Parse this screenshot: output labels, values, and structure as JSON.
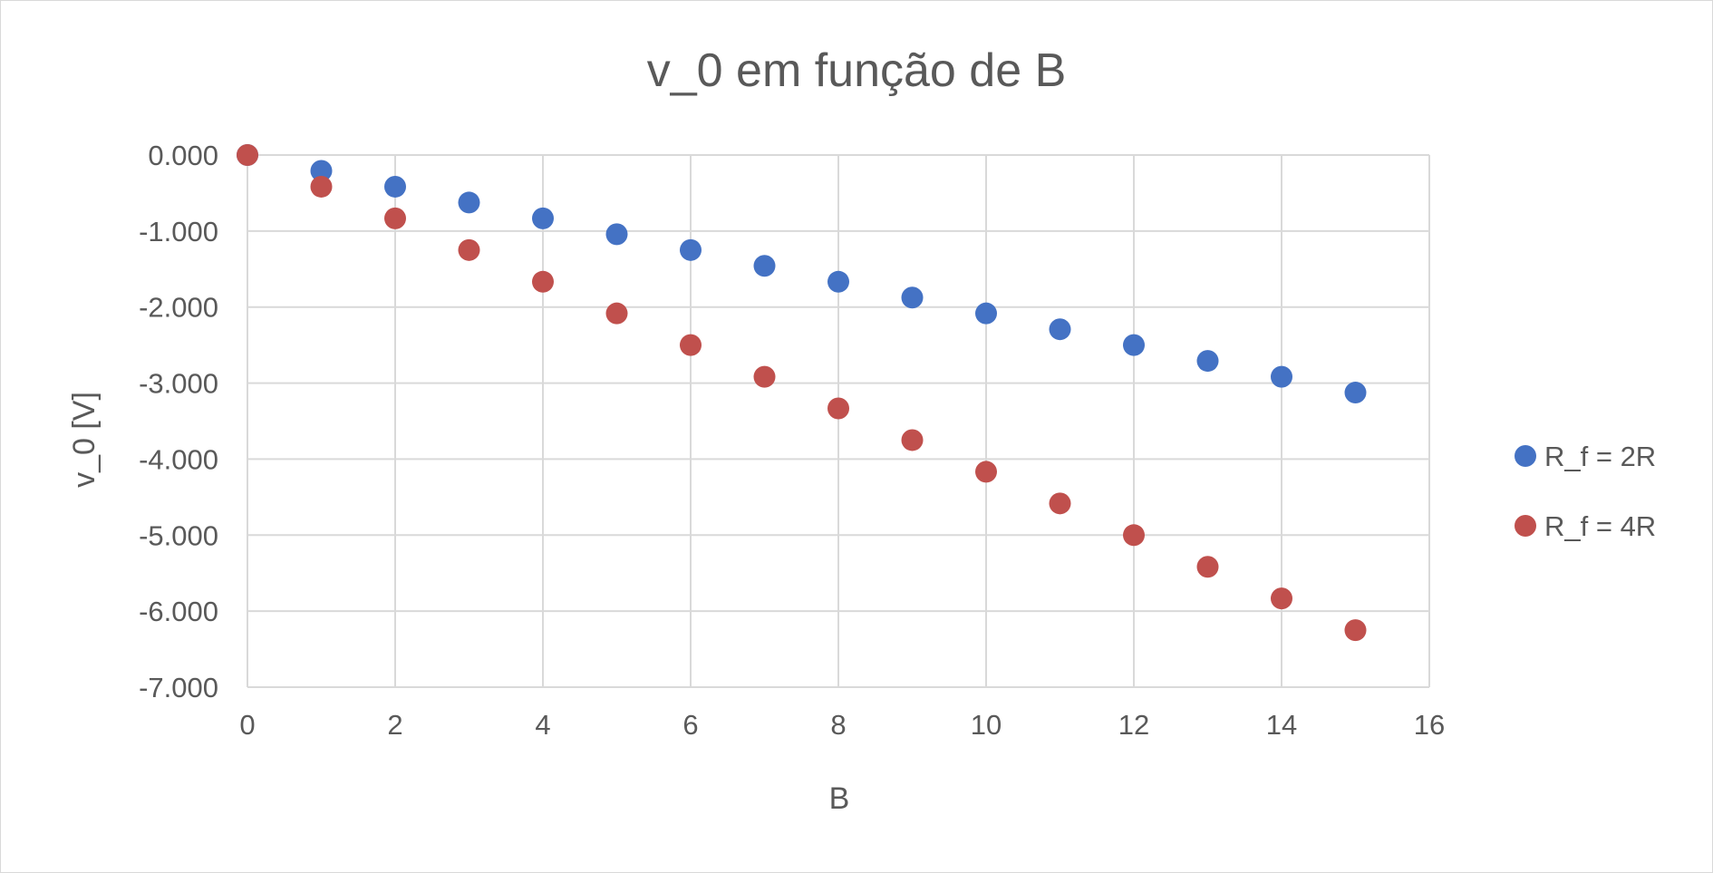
{
  "chart_data": {
    "type": "scatter",
    "title": "v_0 em função de B",
    "xlabel": "B",
    "ylabel": "v_0 [V]",
    "xlim": [
      0,
      16
    ],
    "ylim": [
      -7,
      0
    ],
    "x_ticks": [
      "0",
      "2",
      "4",
      "6",
      "8",
      "10",
      "12",
      "14",
      "16"
    ],
    "y_ticks": [
      "0.000",
      "-1.000",
      "-2.000",
      "-3.000",
      "-4.000",
      "-5.000",
      "-6.000",
      "-7.000"
    ],
    "grid": true,
    "legend_position": "right",
    "series": [
      {
        "name": "R_f = 2R",
        "color": "#4472C4",
        "x": [
          0,
          1,
          2,
          3,
          4,
          5,
          6,
          7,
          8,
          9,
          10,
          11,
          12,
          13,
          14,
          15
        ],
        "y": [
          0,
          -0.208,
          -0.417,
          -0.625,
          -0.833,
          -1.042,
          -1.25,
          -1.458,
          -1.667,
          -1.875,
          -2.083,
          -2.292,
          -2.5,
          -2.708,
          -2.917,
          -3.125
        ]
      },
      {
        "name": "R_f = 4R",
        "color": "#C0504D",
        "x": [
          0,
          1,
          2,
          3,
          4,
          5,
          6,
          7,
          8,
          9,
          10,
          11,
          12,
          13,
          14,
          15
        ],
        "y": [
          0,
          -0.417,
          -0.833,
          -1.25,
          -1.667,
          -2.083,
          -2.5,
          -2.917,
          -3.333,
          -3.75,
          -4.167,
          -4.583,
          -5.0,
          -5.417,
          -5.833,
          -6.25
        ]
      }
    ]
  }
}
